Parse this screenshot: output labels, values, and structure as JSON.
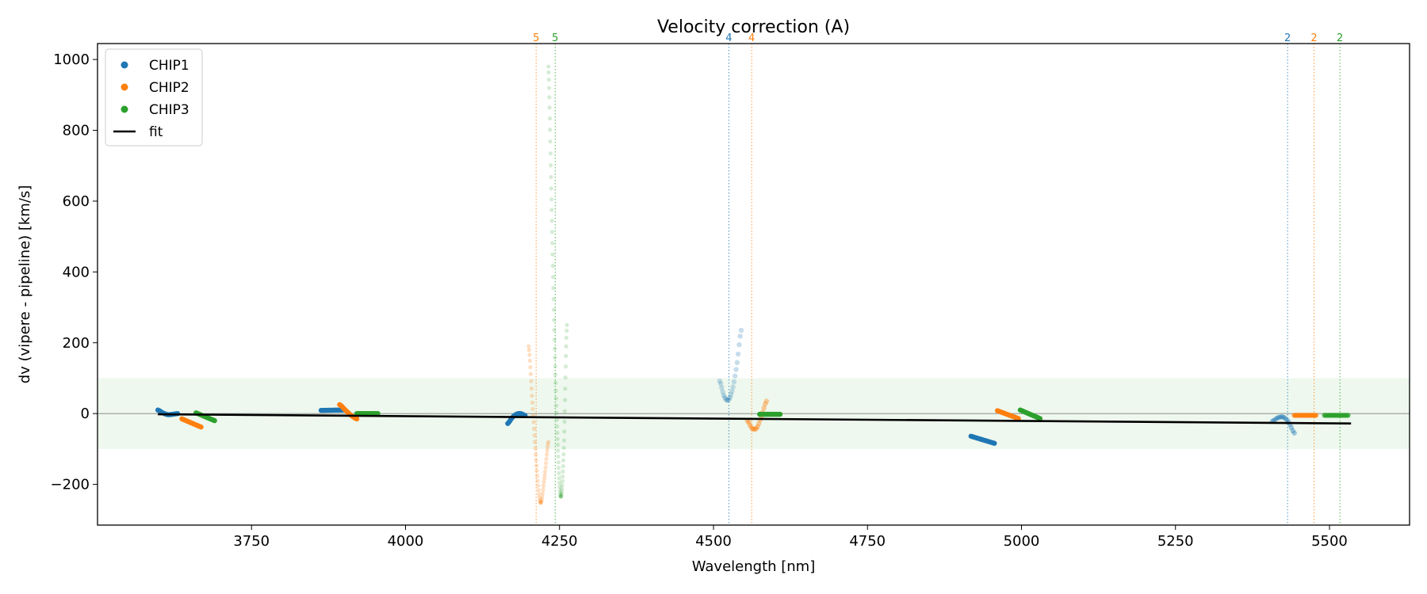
{
  "chart_data": {
    "type": "scatter",
    "title": "Velocity correction (A)",
    "xlabel": "Wavelength [nm]",
    "ylabel": "dv (vipere - pipeline) [km/s]",
    "xlim": [
      3500,
      5630
    ],
    "ylim": [
      -315,
      1045
    ],
    "xticks": [
      3750,
      4000,
      4250,
      4500,
      4750,
      5000,
      5250,
      5500
    ],
    "yticks": [
      -200,
      0,
      200,
      400,
      600,
      800,
      1000
    ],
    "xtick_labels": [
      "3750",
      "4000",
      "4250",
      "4500",
      "4750",
      "5000",
      "5250",
      "5500"
    ],
    "ytick_labels": [
      "−200",
      "0",
      "200",
      "400",
      "600",
      "800",
      "1000"
    ],
    "grid": false,
    "legend_position": "top-left",
    "shaded_band": {
      "y_from": -100,
      "y_to": 100,
      "color": "#2ca02c"
    },
    "zero_line": 0,
    "series": [
      {
        "name": "CHIP1",
        "color": "#1f77b4",
        "marker": "dot",
        "segments": [
          {
            "x0": 3598,
            "x1": 3630,
            "shape": "curve",
            "y": [
              10,
              2,
              -3,
              -2,
              0
            ],
            "alpha": 1
          },
          {
            "x0": 3863,
            "x1": 3898,
            "shape": "line",
            "y": [
              9,
              10
            ],
            "alpha": 1
          },
          {
            "x0": 4166,
            "x1": 4194,
            "shape": "curve",
            "y": [
              -28,
              -12,
              -2,
              0,
              -5
            ],
            "alpha": 1
          },
          {
            "x0": 4510,
            "x1": 4545,
            "shape": "curve",
            "y": [
              92,
              50,
              38,
              70,
              140,
              235
            ],
            "alpha": 0.25
          },
          {
            "x0": 4918,
            "x1": 4956,
            "shape": "line",
            "y": [
              -64,
              -84
            ],
            "alpha": 1
          },
          {
            "x0": 5407,
            "x1": 5443,
            "shape": "curve",
            "y": [
              -22,
              -12,
              -10,
              -25,
              -55
            ],
            "alpha": 0.4
          }
        ]
      },
      {
        "name": "CHIP2",
        "color": "#ff7f0e",
        "marker": "dot",
        "segments": [
          {
            "x0": 3637,
            "x1": 3668,
            "shape": "line",
            "y": [
              -15,
              -38
            ],
            "alpha": 1
          },
          {
            "x0": 3893,
            "x1": 3921,
            "shape": "curve",
            "y": [
              25,
              10,
              -5,
              -15
            ],
            "alpha": 1
          },
          {
            "x0": 4200,
            "x1": 4232,
            "shape": "curve",
            "y": [
              190,
              20,
              -150,
              -252,
              -180,
              -80
            ],
            "alpha": 0.25
          },
          {
            "x0": 4555,
            "x1": 4586,
            "shape": "curve",
            "y": [
              -20,
              -42,
              -40,
              -5,
              35
            ],
            "alpha": 0.4
          },
          {
            "x0": 4961,
            "x1": 4995,
            "shape": "line",
            "y": [
              8,
              -14
            ],
            "alpha": 1
          },
          {
            "x0": 5443,
            "x1": 5478,
            "shape": "line",
            "y": [
              -5,
              -5
            ],
            "alpha": 0.8
          }
        ]
      },
      {
        "name": "CHIP3",
        "color": "#2ca02c",
        "marker": "dot",
        "segments": [
          {
            "x0": 3660,
            "x1": 3690,
            "shape": "line",
            "y": [
              2,
              -20
            ],
            "alpha": 1
          },
          {
            "x0": 3921,
            "x1": 3955,
            "shape": "line",
            "y": [
              0,
              0
            ],
            "alpha": 1
          },
          {
            "x0": 4232,
            "x1": 4262,
            "shape": "curve",
            "y": [
              980,
              600,
              200,
              -80,
              -235,
              -100,
              250
            ],
            "alpha": 0.2
          },
          {
            "x0": 4575,
            "x1": 4608,
            "shape": "line",
            "y": [
              -2,
              -2
            ],
            "alpha": 1
          },
          {
            "x0": 4998,
            "x1": 5030,
            "shape": "line",
            "y": [
              10,
              -14
            ],
            "alpha": 1
          },
          {
            "x0": 5492,
            "x1": 5530,
            "shape": "line",
            "y": [
              -5,
              -5
            ],
            "alpha": 0.8
          }
        ]
      },
      {
        "name": "fit",
        "color": "#000000",
        "marker": "line",
        "x": [
          3598,
          5535
        ],
        "y": [
          -2,
          -28
        ]
      }
    ],
    "vlines": [
      {
        "x": 4212,
        "label": "5",
        "color": "#ff7f0e"
      },
      {
        "x": 4243,
        "label": "5",
        "color": "#2ca02c"
      },
      {
        "x": 4525,
        "label": "4",
        "color": "#1f77b4"
      },
      {
        "x": 4562,
        "label": "4",
        "color": "#ff7f0e"
      },
      {
        "x": 5432,
        "label": "2",
        "color": "#1f77b4"
      },
      {
        "x": 5475,
        "label": "2",
        "color": "#ff7f0e"
      },
      {
        "x": 5517,
        "label": "2",
        "color": "#2ca02c"
      }
    ]
  }
}
